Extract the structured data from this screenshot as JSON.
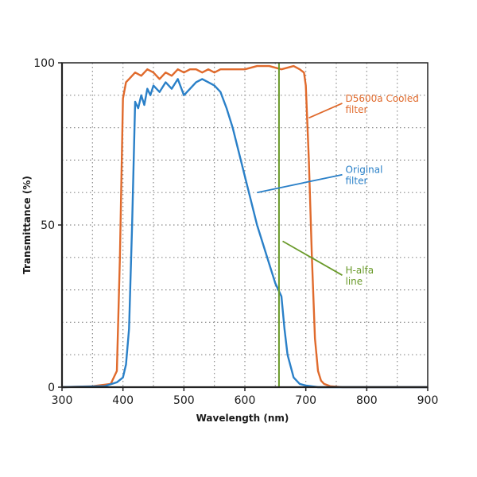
{
  "chart_data": {
    "type": "line",
    "xlabel": "Wavelength (nm)",
    "ylabel": "Transmittance (%)",
    "xlim": [
      300,
      900
    ],
    "ylim": [
      0,
      100
    ],
    "xticks": [
      300,
      400,
      500,
      600,
      700,
      800,
      900
    ],
    "yticks": [
      0,
      50,
      100
    ],
    "grid": true,
    "series": [
      {
        "name": "D5600a Cooled filter",
        "color": "#e06a2c",
        "x": [
          300,
          350,
          380,
          390,
          395,
          400,
          405,
          410,
          420,
          430,
          440,
          450,
          460,
          470,
          480,
          490,
          500,
          510,
          520,
          530,
          540,
          550,
          560,
          580,
          600,
          620,
          640,
          660,
          680,
          690,
          697,
          700,
          705,
          710,
          715,
          720,
          725,
          730,
          740,
          760,
          800,
          900
        ],
        "values": [
          0,
          0.3,
          1,
          5,
          40,
          89,
          94,
          95,
          97,
          96,
          98,
          97,
          95,
          97,
          96,
          98,
          97,
          98,
          98,
          97,
          98,
          97,
          98,
          98,
          98,
          99,
          99,
          98,
          99,
          98,
          97,
          93,
          70,
          40,
          15,
          5,
          2,
          1,
          0.3,
          0,
          0,
          0
        ]
      },
      {
        "name": "Original filter",
        "color": "#2a80c8",
        "x": [
          300,
          370,
          390,
          400,
          405,
          410,
          415,
          420,
          425,
          430,
          435,
          440,
          445,
          450,
          460,
          470,
          480,
          490,
          500,
          510,
          520,
          530,
          540,
          550,
          560,
          570,
          580,
          600,
          620,
          640,
          650,
          660,
          665,
          670,
          680,
          690,
          700,
          720,
          800,
          900
        ],
        "values": [
          0,
          0.3,
          1.5,
          3,
          7,
          18,
          50,
          88,
          86,
          90,
          87,
          92,
          90,
          93,
          91,
          94,
          92,
          95,
          90,
          92,
          94,
          95,
          94,
          93,
          91,
          86,
          80,
          65,
          50,
          38,
          32,
          28,
          18,
          10,
          3,
          1,
          0.5,
          0,
          0,
          0
        ]
      },
      {
        "name": "H-alfa line",
        "color": "#6a9a2a",
        "x": [
          656,
          656
        ],
        "values": [
          0,
          100
        ]
      }
    ],
    "annotations": [
      {
        "text_lines": [
          "D5600a Cooled",
          "filter"
        ],
        "color": "#e06a2c",
        "points_to": [
          705,
          83
        ],
        "text_at": [
          765,
          88
        ]
      },
      {
        "text_lines": [
          "Original",
          "filter"
        ],
        "color": "#2a80c8",
        "points_to": [
          620,
          60
        ],
        "text_at": [
          765,
          66
        ]
      },
      {
        "text_lines": [
          "H-alfa",
          "line"
        ],
        "color": "#6a9a2a",
        "points_to": [
          662,
          45
        ],
        "text_at": [
          765,
          35
        ]
      }
    ]
  }
}
